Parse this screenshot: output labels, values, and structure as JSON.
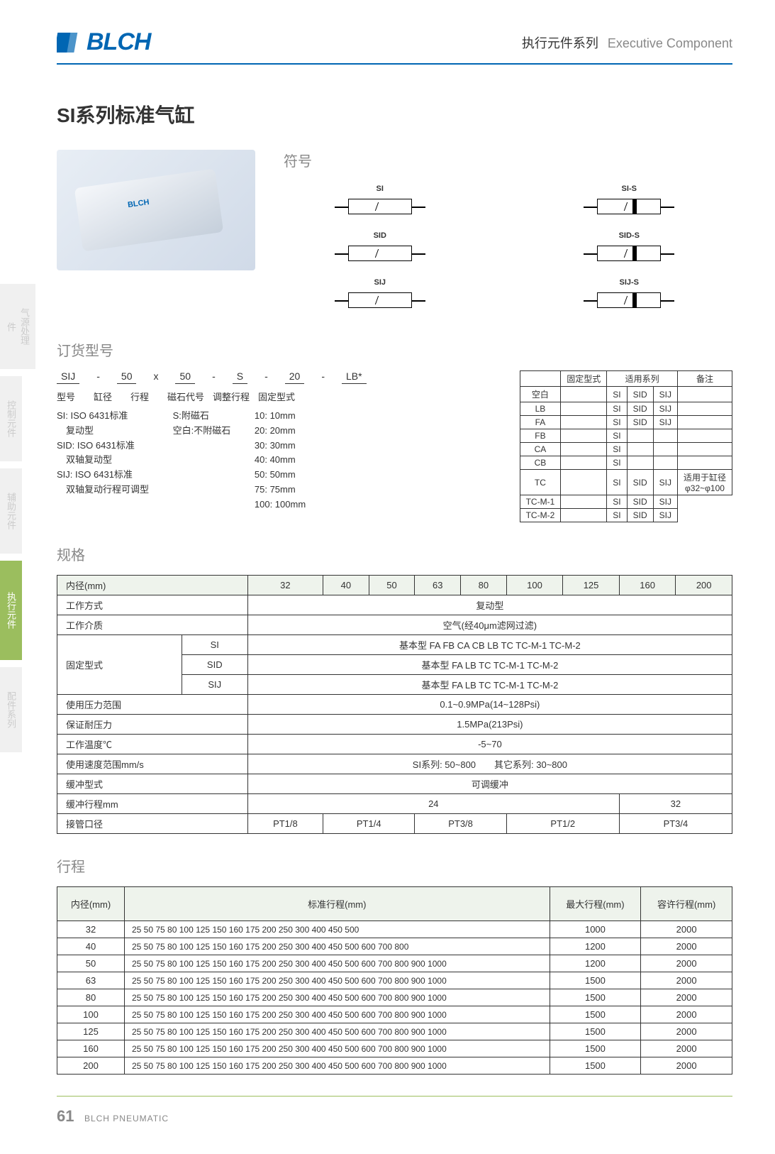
{
  "header": {
    "logo": "BLCH",
    "title_cn": "执行元件系列",
    "title_en": "Executive Component"
  },
  "main_title": {
    "prefix": "SI",
    "text": "系列标准气缸"
  },
  "symbol_section": {
    "title": "符号",
    "items": [
      "SI",
      "SI-S",
      "SID",
      "SID-S",
      "SIJ",
      "SIJ-S"
    ]
  },
  "order_section": {
    "title": "订货型号",
    "code_parts": [
      "SIJ",
      "-",
      "50",
      "x",
      "50",
      "-",
      "S",
      "-",
      "20",
      "-",
      "LB*"
    ],
    "labels": [
      "型号",
      "缸径",
      "行程",
      "磁石代号",
      "调整行程",
      "固定型式"
    ],
    "desc_col1": [
      "SI: ISO 6431标准",
      "　复动型",
      "SID: ISO 6431标准",
      "　双轴复动型",
      "SIJ: ISO 6431标准",
      "　双轴复动行程可调型"
    ],
    "desc_col2_title": "磁石代号",
    "desc_col2": [
      "S:附磁石",
      "空白:不附磁石"
    ],
    "desc_col3_title": "调整行程",
    "desc_col3": [
      "10: 10mm",
      "20: 20mm",
      "30: 30mm",
      "40: 40mm",
      "50: 50mm",
      "75: 75mm",
      "100: 100mm"
    ],
    "fixed_table": {
      "headers": [
        "",
        "固定型式",
        "适用系列",
        "",
        "",
        "备注"
      ],
      "rows": [
        [
          "空白",
          "",
          "SI",
          "SID",
          "SIJ",
          ""
        ],
        [
          "LB",
          "",
          "SI",
          "SID",
          "SIJ",
          ""
        ],
        [
          "FA",
          "",
          "SI",
          "SID",
          "SIJ",
          ""
        ],
        [
          "FB",
          "",
          "SI",
          "",
          "",
          ""
        ],
        [
          "CA",
          "",
          "SI",
          "",
          "",
          ""
        ],
        [
          "CB",
          "",
          "SI",
          "",
          "",
          ""
        ],
        [
          "TC",
          "",
          "SI",
          "SID",
          "SIJ",
          "适用于缸径"
        ],
        [
          "TC-M-1",
          "",
          "SI",
          "SID",
          "SIJ",
          "φ32~φ100"
        ],
        [
          "TC-M-2",
          "",
          "SI",
          "SID",
          "SIJ",
          ""
        ]
      ]
    }
  },
  "spec_section": {
    "title": "规格",
    "bore_label": "内径(mm)",
    "bores": [
      "32",
      "40",
      "50",
      "63",
      "80",
      "100",
      "125",
      "160",
      "200"
    ],
    "rows": [
      {
        "label": "工作方式",
        "value": "复动型",
        "span": 9
      },
      {
        "label": "工作介质",
        "value": "空气(经40μm滤网过滤)",
        "span": 9
      }
    ],
    "fixed_label": "固定型式",
    "fixed_rows": [
      {
        "sub": "SI",
        "value": "基本型 FA FB CA CB LB TC TC-M-1 TC-M-2"
      },
      {
        "sub": "SID",
        "value": "基本型 FA LB TC TC-M-1 TC-M-2"
      },
      {
        "sub": "SIJ",
        "value": "基本型 FA LB TC TC-M-1 TC-M-2"
      }
    ],
    "more_rows": [
      {
        "label": "使用压力范围",
        "value": "0.1~0.9MPa(14~128Psi)"
      },
      {
        "label": "保证耐压力",
        "value": "1.5MPa(213Psi)"
      },
      {
        "label": "工作温度℃",
        "value": "-5~70"
      },
      {
        "label": "使用速度范围mm/s",
        "value": "SI系列:  50~800　　其它系列:  30~800"
      },
      {
        "label": "缓冲型式",
        "value": "可调缓冲"
      }
    ],
    "cushion_row": {
      "label": "缓冲行程mm",
      "v1": "24",
      "v1_span": 7,
      "v2": "32",
      "v2_span": 2
    },
    "port_row": {
      "label": "接管口径",
      "values": [
        {
          "v": "PT1/8",
          "span": 1
        },
        {
          "v": "PT1/4",
          "span": 2
        },
        {
          "v": "PT3/8",
          "span": 2
        },
        {
          "v": "PT1/2",
          "span": 2
        },
        {
          "v": "PT3/4",
          "span": 2
        }
      ]
    }
  },
  "stroke_section": {
    "title": "行程",
    "headers": [
      "内径(mm)",
      "标准行程(mm)",
      "最大行程(mm)",
      "容许行程(mm)"
    ],
    "rows": [
      {
        "bore": "32",
        "std": "25 50 75 80 100 125 150 160 175 200 250 300 400 450 500",
        "max": "1000",
        "allow": "2000"
      },
      {
        "bore": "40",
        "std": "25 50 75 80 100 125 150 160 175 200 250 300 400 450 500 600 700 800",
        "max": "1200",
        "allow": "2000"
      },
      {
        "bore": "50",
        "std": "25 50 75 80 100 125 150 160 175 200 250 300 400 450 500 600 700 800 900 1000",
        "max": "1200",
        "allow": "2000"
      },
      {
        "bore": "63",
        "std": "25 50 75 80 100 125 150 160 175 200 250 300 400 450 500 600 700 800 900 1000",
        "max": "1500",
        "allow": "2000"
      },
      {
        "bore": "80",
        "std": "25 50 75 80 100 125 150 160 175 200 250 300 400 450 500 600 700 800 900 1000",
        "max": "1500",
        "allow": "2000"
      },
      {
        "bore": "100",
        "std": "25 50 75 80 100 125 150 160 175 200 250 300 400 450 500 600 700 800 900 1000",
        "max": "1500",
        "allow": "2000"
      },
      {
        "bore": "125",
        "std": "25 50 75 80 100 125 150 160 175 200 250 300 400 450 500 600 700 800 900 1000",
        "max": "1500",
        "allow": "2000"
      },
      {
        "bore": "160",
        "std": "25 50 75 80 100 125 150 160 175 200 250 300 400 450 500 600 700 800 900 1000",
        "max": "1500",
        "allow": "2000"
      },
      {
        "bore": "200",
        "std": "25 50 75 80 100 125 150 160 175 200 250 300 400 450 500 600 700 800 900 1000",
        "max": "1500",
        "allow": "2000"
      }
    ]
  },
  "side_tabs": [
    "气源处理件",
    "控制元件",
    "辅助元件",
    "执行元件",
    "配件系列"
  ],
  "footer": {
    "page": "61",
    "brand": "BLCH PNEUMATIC"
  }
}
